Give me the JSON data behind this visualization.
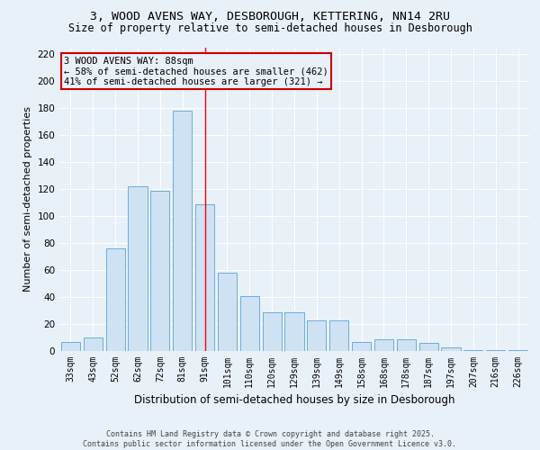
{
  "title_line1": "3, WOOD AVENS WAY, DESBOROUGH, KETTERING, NN14 2RU",
  "title_line2": "Size of property relative to semi-detached houses in Desborough",
  "xlabel": "Distribution of semi-detached houses by size in Desborough",
  "ylabel": "Number of semi-detached properties",
  "categories": [
    "33sqm",
    "43sqm",
    "52sqm",
    "62sqm",
    "72sqm",
    "81sqm",
    "91sqm",
    "101sqm",
    "110sqm",
    "120sqm",
    "129sqm",
    "139sqm",
    "149sqm",
    "158sqm",
    "168sqm",
    "178sqm",
    "187sqm",
    "197sqm",
    "207sqm",
    "216sqm",
    "226sqm"
  ],
  "values": [
    7,
    10,
    76,
    122,
    119,
    178,
    109,
    58,
    41,
    29,
    29,
    23,
    23,
    7,
    9,
    9,
    6,
    3,
    1,
    1,
    1
  ],
  "bar_color": "#cfe2f3",
  "bar_edge_color": "#6baed6",
  "property_label": "3 WOOD AVENS WAY: 88sqm",
  "smaller_pct": 58,
  "smaller_count": 462,
  "larger_pct": 41,
  "larger_count": 321,
  "vline_x": 6.0,
  "ylim": [
    0,
    225
  ],
  "yticks": [
    0,
    20,
    40,
    60,
    80,
    100,
    120,
    140,
    160,
    180,
    200,
    220
  ],
  "footer_line1": "Contains HM Land Registry data © Crown copyright and database right 2025.",
  "footer_line2": "Contains public sector information licensed under the Open Government Licence v3.0.",
  "bg_color": "#e8f0f8",
  "plot_bg_color": "#e8f0f8",
  "grid_color": "#ffffff",
  "annotation_box_color": "#cc0000",
  "title_fontsize": 9.5,
  "subtitle_fontsize": 8.5,
  "axis_label_fontsize": 8,
  "tick_fontsize": 7,
  "footer_fontsize": 6,
  "annotation_fontsize": 7.5
}
